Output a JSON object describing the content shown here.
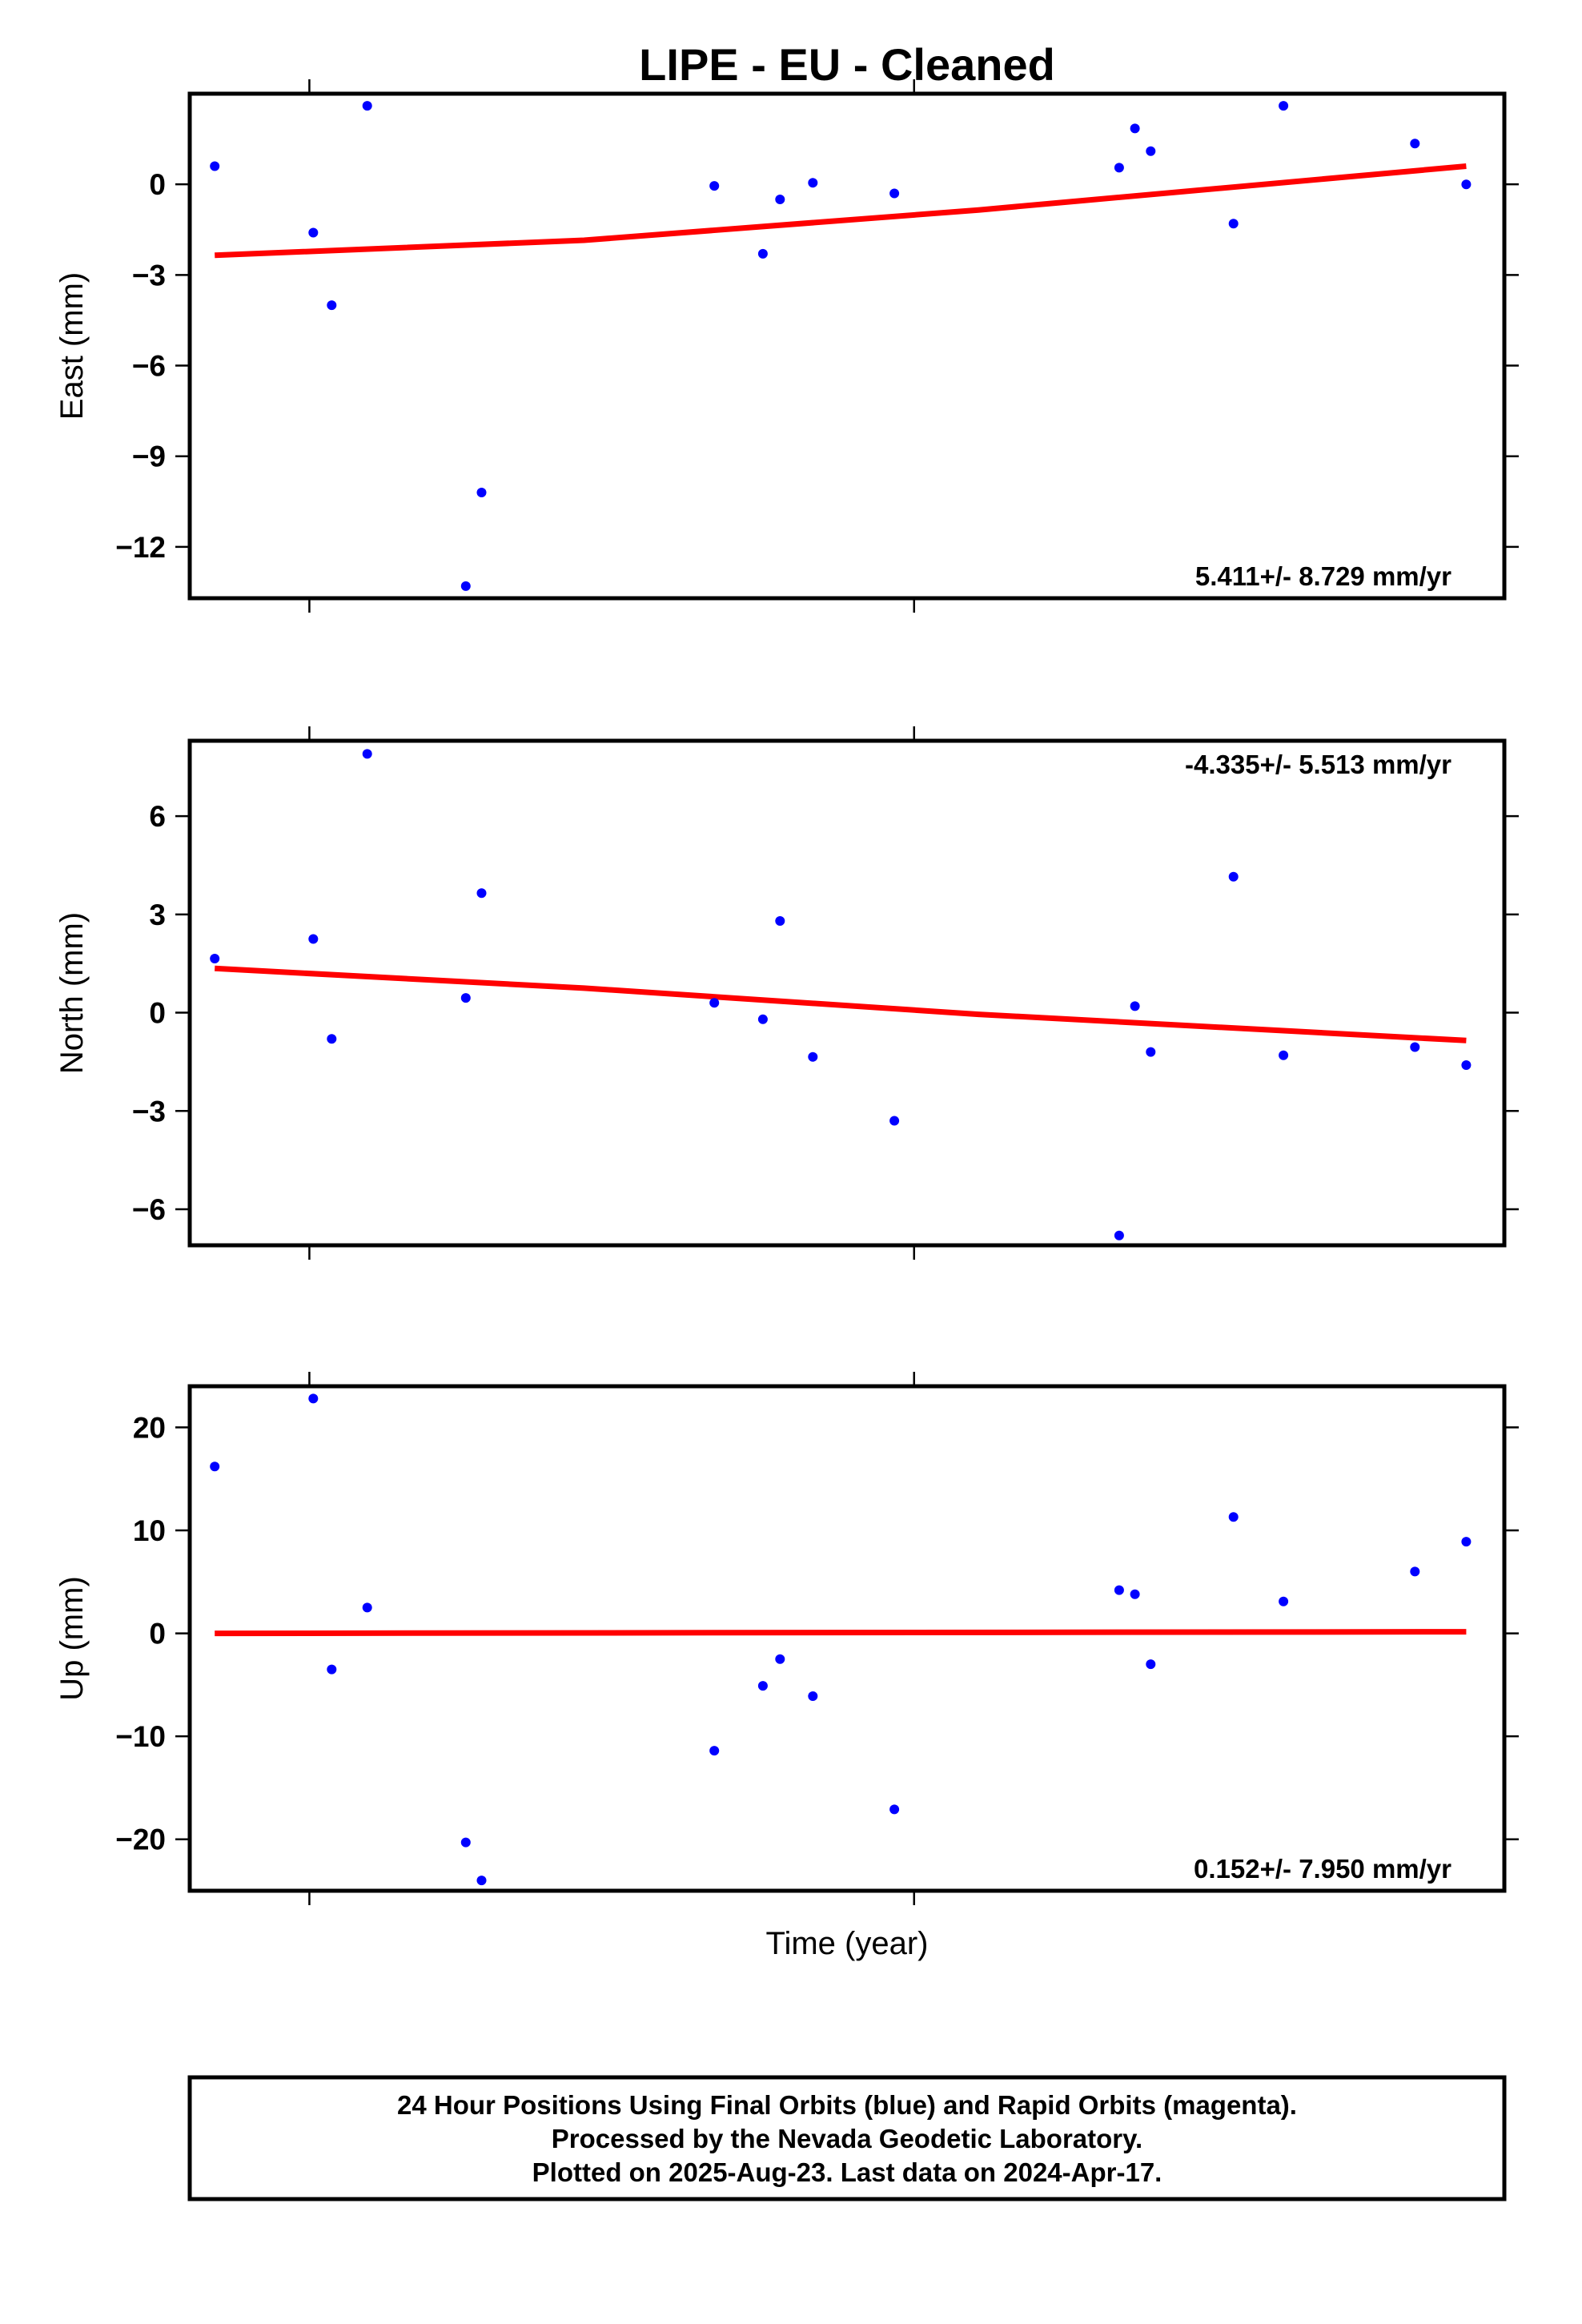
{
  "title": "LIPE  - EU - Cleaned",
  "xlabel": "Time (year)",
  "footer": {
    "line1": "24 Hour Positions Using Final Orbits (blue) and Rapid Orbits (magenta).",
    "line2": "Processed by the Nevada Geodetic Laboratory.",
    "line3": "Plotted on 2025-Aug-23. Last data on 2024-Apr-17."
  },
  "colors": {
    "points": "#0000ff",
    "trend": "#ff0000",
    "frame": "#000000"
  },
  "chart_data": [
    {
      "type": "scatter",
      "ylabel": "East (mm)",
      "rate_label": "5.411+/- 8.729 mm/yr",
      "rate_position": "bottom-right",
      "ylim": [
        -13.7,
        3.0
      ],
      "yticks": [
        0,
        -3,
        -6,
        -9,
        -12
      ],
      "ytick_labels": [
        "0",
        "−3",
        "−6",
        "−9",
        "−12"
      ],
      "x": [
        0.019,
        0.094,
        0.108,
        0.135,
        0.21,
        0.222,
        0.399,
        0.436,
        0.449,
        0.474,
        0.536,
        0.707,
        0.719,
        0.731,
        0.794,
        0.832,
        0.932,
        0.971
      ],
      "y": [
        0.6,
        -1.6,
        -4.0,
        2.6,
        -13.3,
        -10.2,
        -0.05,
        -2.3,
        -0.5,
        0.05,
        -0.3,
        0.55,
        1.85,
        1.1,
        -1.3,
        2.6,
        1.35,
        0.0
      ],
      "trend": {
        "x": [
          0.019,
          0.3,
          0.6,
          0.971
        ],
        "y": [
          -2.35,
          -1.85,
          -0.85,
          0.6
        ]
      }
    },
    {
      "type": "scatter",
      "ylabel": "North (mm)",
      "rate_label": "-4.335+/- 5.513 mm/yr",
      "rate_position": "top-right",
      "ylim": [
        -7.1,
        8.3
      ],
      "yticks": [
        6,
        3,
        0,
        -3,
        -6
      ],
      "ytick_labels": [
        "6",
        "3",
        "0",
        "−3",
        "−6"
      ],
      "x": [
        0.019,
        0.094,
        0.108,
        0.135,
        0.21,
        0.222,
        0.399,
        0.436,
        0.449,
        0.474,
        0.536,
        0.707,
        0.719,
        0.731,
        0.794,
        0.832,
        0.932,
        0.971
      ],
      "y": [
        1.65,
        2.25,
        -0.8,
        7.9,
        0.45,
        3.65,
        0.3,
        -0.2,
        2.8,
        -1.35,
        -3.3,
        -6.8,
        0.2,
        -1.2,
        4.15,
        -1.3,
        -1.05,
        -1.6
      ],
      "trend": {
        "x": [
          0.019,
          0.3,
          0.6,
          0.971
        ],
        "y": [
          1.35,
          0.75,
          -0.05,
          -0.85
        ]
      }
    },
    {
      "type": "scatter",
      "ylabel": "Up (mm)",
      "rate_label": "0.152+/- 7.950 mm/yr",
      "rate_position": "bottom-right",
      "ylim": [
        -25,
        24
      ],
      "yticks": [
        20,
        10,
        0,
        -10,
        -20
      ],
      "ytick_labels": [
        "20",
        "10",
        "0",
        "−10",
        "−20"
      ],
      "x": [
        0.019,
        0.094,
        0.108,
        0.135,
        0.21,
        0.222,
        0.399,
        0.436,
        0.449,
        0.474,
        0.536,
        0.707,
        0.719,
        0.731,
        0.794,
        0.832,
        0.932,
        0.971
      ],
      "y": [
        16.2,
        22.8,
        -3.5,
        2.5,
        -20.3,
        -24.0,
        -11.4,
        -5.1,
        -2.5,
        -6.1,
        -17.1,
        4.2,
        3.8,
        -3.0,
        11.3,
        3.1,
        6.0,
        8.9
      ],
      "trend": {
        "x": [
          0.019,
          0.971
        ],
        "y": [
          0.0,
          0.15
        ]
      }
    }
  ]
}
